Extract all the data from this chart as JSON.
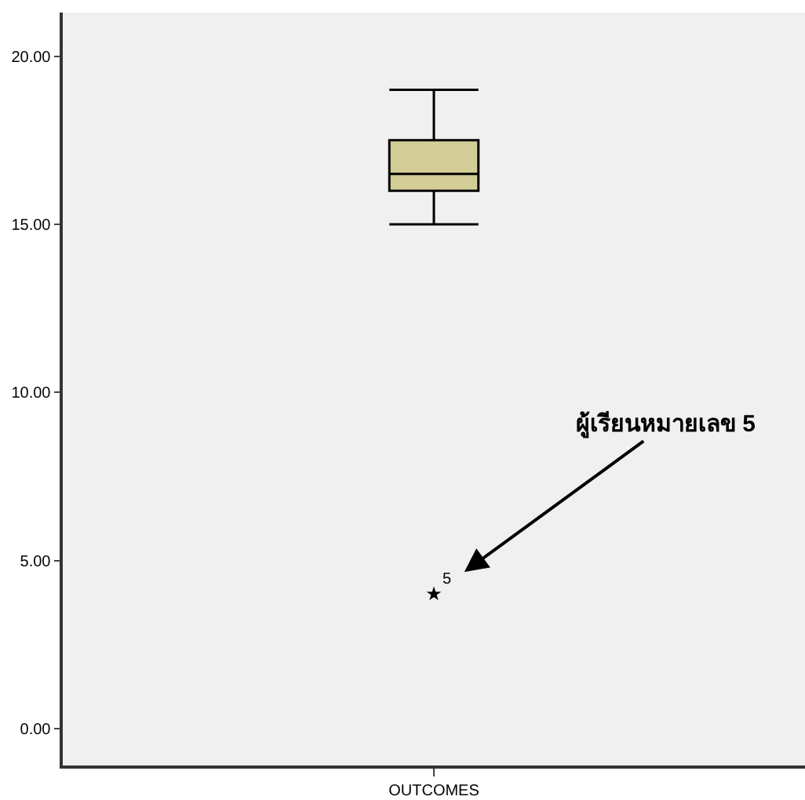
{
  "chart_data": {
    "type": "box",
    "categories": [
      "OUTCOMES"
    ],
    "boxes": [
      {
        "low": 15,
        "q1": 16,
        "median": 16.5,
        "q3": 17.5,
        "high": 19,
        "outliers": [
          4
        ]
      }
    ],
    "color": "#d3ce97",
    "marker": "star",
    "ylim": [
      -1.1,
      21.3
    ],
    "yticks": [
      {
        "value": 0,
        "label": "0.00"
      },
      {
        "value": 5,
        "label": "5.00"
      },
      {
        "value": 10,
        "label": "10.00"
      },
      {
        "value": 15,
        "label": "15.00"
      },
      {
        "value": 20,
        "label": "20.00"
      }
    ],
    "grid": false,
    "annotations": [
      "5",
      "ผู้เรียนหมายเลข 5"
    ]
  }
}
